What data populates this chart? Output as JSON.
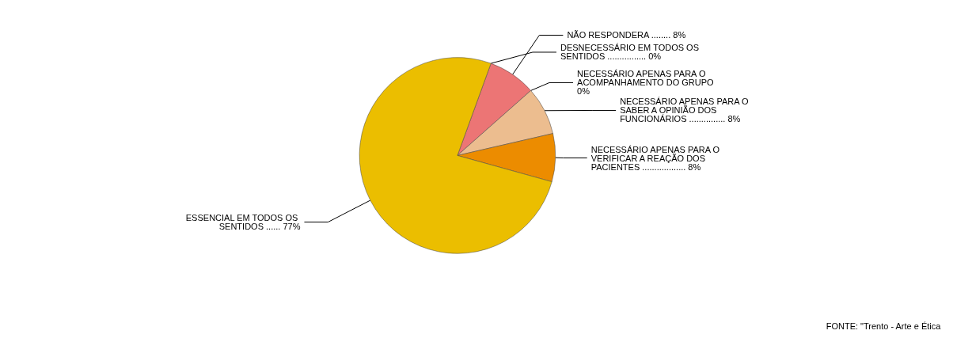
{
  "chart_data": {
    "type": "pie",
    "categories": [
      "DESNECESSÁRIO EM TODOS OS SENTIDOS",
      "NÃO RESPONDERA",
      "NECESSÁRIO APENAS PARA O ACOMPANHAMENTO DO GRUPO",
      "NECESSÁRIO APENAS PARA O SABER A OPINIÃO DOS FUNCIONÁRIOS",
      "NECESSÁRIO APENAS PARA O VERIFICAR A REAÇÃO DOS PACIENTES",
      "ESSENCIAL EM TODOS OS SENTIDOS"
    ],
    "values": [
      0,
      8,
      0,
      8,
      8,
      77
    ],
    "value_labels": [
      "................ 0%",
      "........ 8%",
      "0%",
      "............... 8%",
      ".................. 8%",
      "...... 77%"
    ],
    "colors": [
      "#9a9a9a",
      "#ec7575",
      "#c8c8c8",
      "#ecbd8f",
      "#ec8c00",
      "#ebbe00"
    ],
    "legend": false,
    "annotations": [
      "FONTE: \"Trento - Arte e Ética"
    ]
  }
}
